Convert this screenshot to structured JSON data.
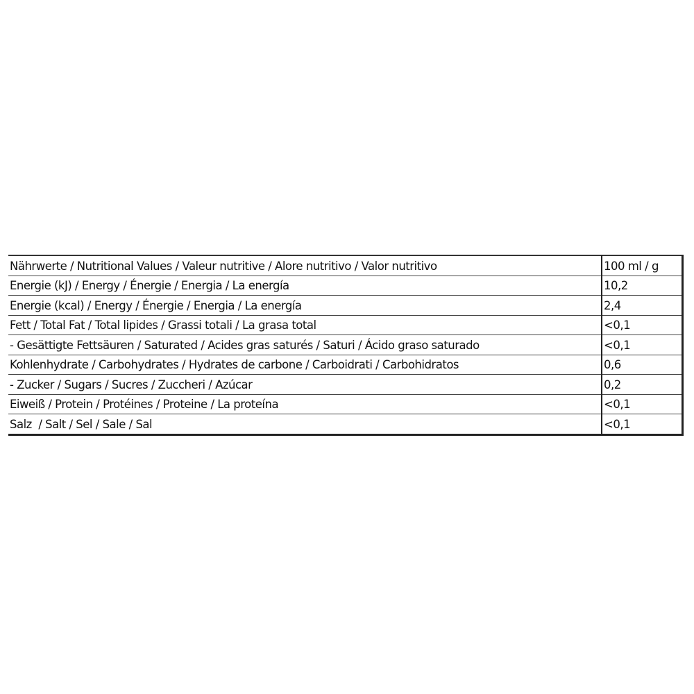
{
  "table": {
    "rows": [
      {
        "label": "Nährwerte / Nutritional Values / Valeur nutritive / Alore nutritivo / Valor nutritivo",
        "value": "100 ml / g"
      },
      {
        "label": "Energie (kJ) / Energy / Énergie / Energia / La energía",
        "value": "10,2"
      },
      {
        "label": "Energie (kcal) / Energy / Énergie / Energia / La energía",
        "value": "2,4"
      },
      {
        "label": "Fett / Total Fat / Total lipides / Grassi totali / La grasa total",
        "value": "<0,1"
      },
      {
        "label": "- Gesättigte Fettsäuren / Saturated / Acides gras saturés / Saturi / Ácido graso saturado",
        "value": "<0,1"
      },
      {
        "label": "Kohlenhydrate / Carbohydrates / Hydrates de carbone / Carboidrati / Carbohidratos",
        "value": "0,6"
      },
      {
        "label": "- Zucker / Sugars / Sucres / Zuccheri / Azúcar",
        "value": "0,2"
      },
      {
        "label": "Eiweiß / Protein / Protéines / Proteine / La proteína",
        "value": "<0,1"
      },
      {
        "label": "Salz  / Salt / Sel / Sale / Sal",
        "value": "<0,1"
      }
    ]
  }
}
